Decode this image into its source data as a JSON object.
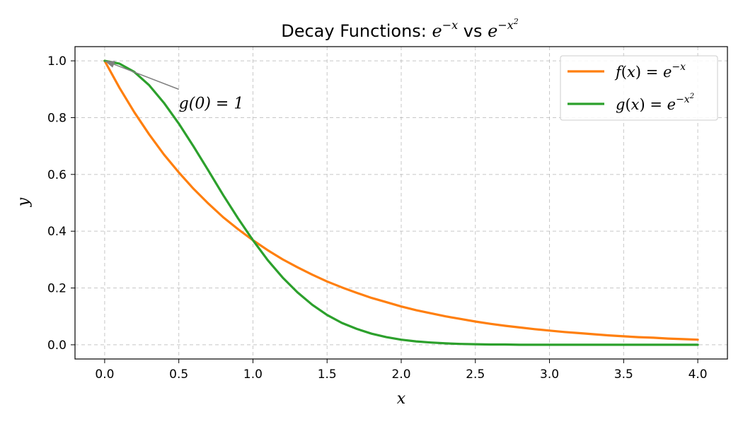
{
  "chart_data": {
    "type": "line",
    "title": {
      "prefix": "Decay Functions: ",
      "base1": "e",
      "exp1": "−x",
      "middle": " vs ",
      "base2": "e",
      "exp2_main": "−x",
      "exp2_power": "2"
    },
    "xlabel": "x",
    "ylabel": "y",
    "xlim": [
      -0.2,
      4.2
    ],
    "ylim": [
      -0.05,
      1.05
    ],
    "x_ticks": [
      0.0,
      0.5,
      1.0,
      1.5,
      2.0,
      2.5,
      3.0,
      3.5,
      4.0
    ],
    "x_tick_labels": [
      "0.0",
      "0.5",
      "1.0",
      "1.5",
      "2.0",
      "2.5",
      "3.0",
      "3.5",
      "4.0"
    ],
    "y_ticks": [
      0.0,
      0.2,
      0.4,
      0.6,
      0.8,
      1.0
    ],
    "y_tick_labels": [
      "0.0",
      "0.2",
      "0.4",
      "0.6",
      "0.8",
      "1.0"
    ],
    "grid": true,
    "legend_position": "top-right",
    "x": [
      0.0,
      0.1,
      0.2,
      0.3,
      0.4,
      0.5,
      0.6,
      0.7,
      0.8,
      0.9,
      1.0,
      1.1,
      1.2,
      1.3,
      1.4,
      1.5,
      1.6,
      1.7,
      1.8,
      1.9,
      2.0,
      2.1,
      2.2,
      2.3,
      2.4,
      2.5,
      2.6,
      2.7,
      2.8,
      2.9,
      3.0,
      3.1,
      3.2,
      3.3,
      3.4,
      3.5,
      3.6,
      3.7,
      3.8,
      3.9,
      4.0
    ],
    "series": [
      {
        "legend": {
          "name": "f",
          "arg": "x",
          "base": "e",
          "exp_main": "−x",
          "exp_power": ""
        },
        "color": "#ff7f0e",
        "values": [
          1.0,
          0.905,
          0.819,
          0.741,
          0.67,
          0.607,
          0.549,
          0.497,
          0.449,
          0.407,
          0.368,
          0.333,
          0.301,
          0.273,
          0.247,
          0.223,
          0.202,
          0.183,
          0.165,
          0.15,
          0.135,
          0.122,
          0.111,
          0.1,
          0.091,
          0.082,
          0.074,
          0.067,
          0.061,
          0.055,
          0.05,
          0.045,
          0.041,
          0.037,
          0.033,
          0.03,
          0.027,
          0.025,
          0.022,
          0.02,
          0.018
        ]
      },
      {
        "legend": {
          "name": "g",
          "arg": "x",
          "base": "e",
          "exp_main": "−x",
          "exp_power": "2"
        },
        "color": "#2ca02c",
        "values": [
          1.0,
          0.99,
          0.961,
          0.914,
          0.852,
          0.779,
          0.698,
          0.613,
          0.527,
          0.445,
          0.368,
          0.298,
          0.237,
          0.185,
          0.141,
          0.105,
          0.077,
          0.056,
          0.039,
          0.027,
          0.018,
          0.012,
          0.008,
          0.005,
          0.003,
          0.002,
          0.001,
          0.001,
          0.0,
          0.0,
          0.0,
          0.0,
          0.0,
          0.0,
          0.0,
          0.0,
          0.0,
          0.0,
          0.0,
          0.0,
          0.0
        ]
      }
    ],
    "annotation": {
      "text": "g(0) = 1",
      "point": [
        0.0,
        1.0
      ],
      "text_at": [
        0.5,
        0.85
      ],
      "arrow_color": "#808080"
    },
    "colors": {
      "grid": "#b0b0b0",
      "axes": "#000000",
      "legend_border": "#cccccc"
    }
  }
}
